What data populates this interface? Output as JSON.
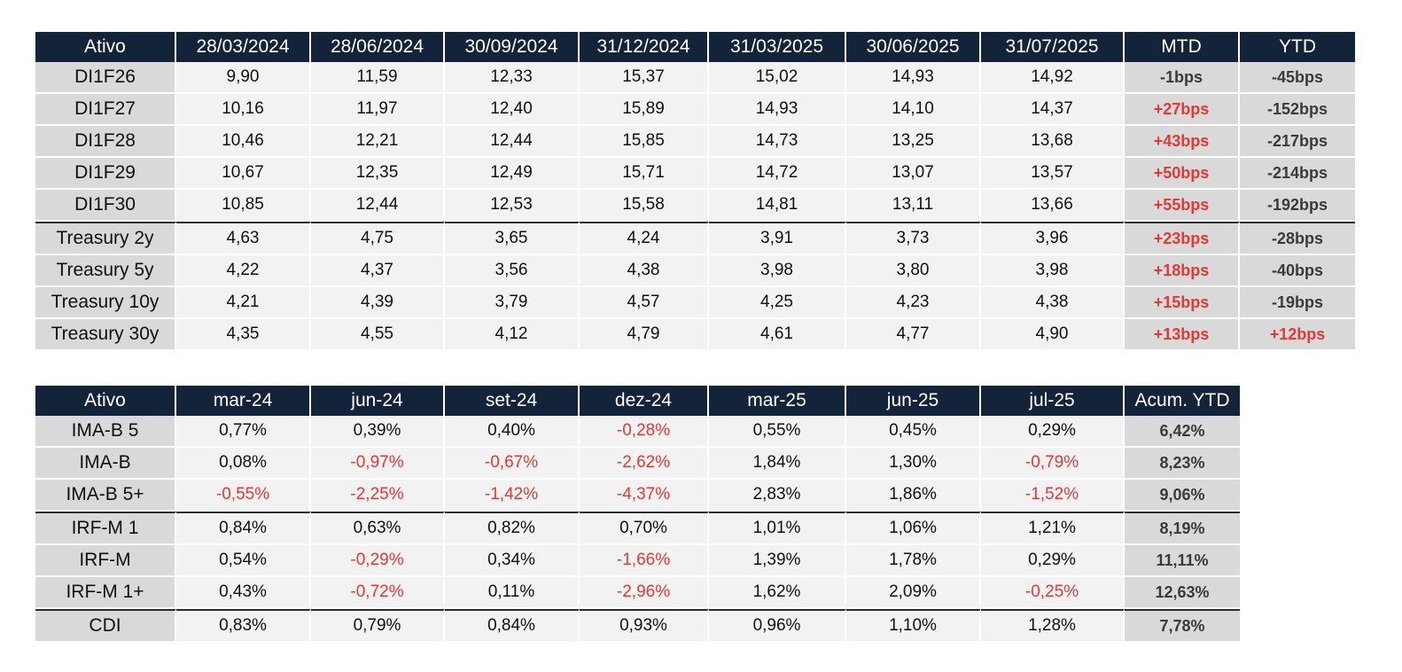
{
  "chart_data": [
    {
      "type": "table",
      "header": [
        "Ativo",
        "28/03/2024",
        "28/06/2024",
        "30/09/2024",
        "31/12/2024",
        "31/03/2025",
        "30/06/2025",
        "31/07/2025",
        "MTD",
        "YTD"
      ],
      "rows": [
        {
          "cells": [
            "DI1F26",
            "9,90",
            "11,59",
            "12,33",
            "15,37",
            "15,02",
            "14,93",
            "14,92",
            "-1bps",
            "-45bps"
          ],
          "sep": false
        },
        {
          "cells": [
            "DI1F27",
            "10,16",
            "11,97",
            "12,40",
            "15,89",
            "14,93",
            "14,10",
            "14,37",
            "+27bps",
            "-152bps"
          ],
          "sep": false
        },
        {
          "cells": [
            "DI1F28",
            "10,46",
            "12,21",
            "12,44",
            "15,85",
            "14,73",
            "13,25",
            "13,68",
            "+43bps",
            "-217bps"
          ],
          "sep": false
        },
        {
          "cells": [
            "DI1F29",
            "10,67",
            "12,35",
            "12,49",
            "15,71",
            "14,72",
            "13,07",
            "13,57",
            "+50bps",
            "-214bps"
          ],
          "sep": false
        },
        {
          "cells": [
            "DI1F30",
            "10,85",
            "12,44",
            "12,53",
            "15,58",
            "14,81",
            "13,11",
            "13,66",
            "+55bps",
            "-192bps"
          ],
          "sep": false
        },
        {
          "cells": [
            "Treasury 2y",
            "4,63",
            "4,75",
            "3,65",
            "4,24",
            "3,91",
            "3,73",
            "3,96",
            "+23bps",
            "-28bps"
          ],
          "sep": true
        },
        {
          "cells": [
            "Treasury 5y",
            "4,22",
            "4,37",
            "3,56",
            "4,38",
            "3,98",
            "3,80",
            "3,98",
            "+18bps",
            "-40bps"
          ],
          "sep": false
        },
        {
          "cells": [
            "Treasury 10y",
            "4,21",
            "4,39",
            "3,79",
            "4,57",
            "4,25",
            "4,23",
            "4,38",
            "+15bps",
            "-19bps"
          ],
          "sep": false
        },
        {
          "cells": [
            "Treasury 30y",
            "4,35",
            "4,55",
            "4,12",
            "4,79",
            "4,61",
            "4,77",
            "4,90",
            "+13bps",
            "+12bps"
          ],
          "sep": false
        }
      ]
    },
    {
      "type": "table",
      "header": [
        "Ativo",
        "mar-24",
        "jun-24",
        "set-24",
        "dez-24",
        "mar-25",
        "jun-25",
        "jul-25",
        "Acum. YTD"
      ],
      "rows": [
        {
          "cells": [
            "IMA-B 5",
            "0,77%",
            "0,39%",
            "0,40%",
            "-0,28%",
            "0,55%",
            "0,45%",
            "0,29%",
            "6,42%"
          ],
          "sep": false
        },
        {
          "cells": [
            "IMA-B",
            "0,08%",
            "-0,97%",
            "-0,67%",
            "-2,62%",
            "1,84%",
            "1,30%",
            "-0,79%",
            "8,23%"
          ],
          "sep": false
        },
        {
          "cells": [
            "IMA-B 5+",
            "-0,55%",
            "-2,25%",
            "-1,42%",
            "-4,37%",
            "2,83%",
            "1,86%",
            "-1,52%",
            "9,06%"
          ],
          "sep": false
        },
        {
          "cells": [
            "IRF-M 1",
            "0,84%",
            "0,63%",
            "0,82%",
            "0,70%",
            "1,01%",
            "1,06%",
            "1,21%",
            "8,19%"
          ],
          "sep": true
        },
        {
          "cells": [
            "IRF-M",
            "0,54%",
            "-0,29%",
            "0,34%",
            "-1,66%",
            "1,39%",
            "1,78%",
            "0,29%",
            "11,11%"
          ],
          "sep": false
        },
        {
          "cells": [
            "IRF-M 1+",
            "0,43%",
            "-0,72%",
            "0,11%",
            "-2,96%",
            "1,62%",
            "2,09%",
            "-0,25%",
            "12,63%"
          ],
          "sep": false
        },
        {
          "cells": [
            "CDI",
            "0,83%",
            "0,79%",
            "0,84%",
            "0,93%",
            "0,96%",
            "1,10%",
            "1,28%",
            "7,78%"
          ],
          "sep": true
        }
      ]
    }
  ],
  "colors": {
    "header_bg": "#13233a",
    "header_text": "#ffffff",
    "name_bg": "#d9d9d9",
    "cell_bg": "#f2f2f2",
    "highlight_bg": "#d9d9d9",
    "positive_bps": "#e53935",
    "negative_percent": "#e53935"
  }
}
